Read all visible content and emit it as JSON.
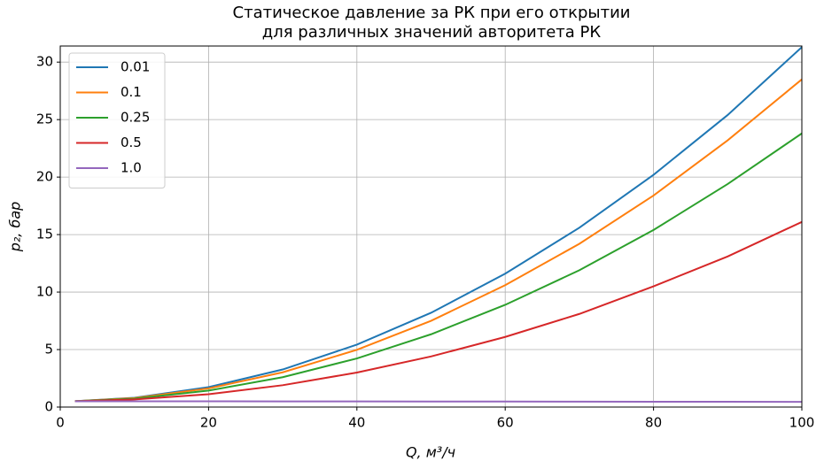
{
  "chart_data": {
    "type": "line",
    "title": [
      "Статическое давление за РК при его открытии",
      "для различных значений авторитета РК"
    ],
    "x_label": "Q,  м³/ч",
    "y_label": "p₂,  бар",
    "x": [
      2,
      10,
      20,
      30,
      40,
      50,
      60,
      70,
      80,
      90,
      100
    ],
    "series": [
      {
        "name": "0.01",
        "color": "#1f77b4",
        "values": [
          0.51,
          0.81,
          1.73,
          3.27,
          5.43,
          8.2,
          11.6,
          15.6,
          20.2,
          25.4,
          31.3
        ]
      },
      {
        "name": "0.1",
        "color": "#ff7f0e",
        "values": [
          0.51,
          0.78,
          1.62,
          3.02,
          4.98,
          7.5,
          10.6,
          14.2,
          18.4,
          23.2,
          28.5
        ]
      },
      {
        "name": "0.25",
        "color": "#2ca02c",
        "values": [
          0.51,
          0.73,
          1.43,
          2.6,
          4.23,
          6.33,
          8.89,
          11.9,
          15.4,
          19.4,
          23.8
        ]
      },
      {
        "name": "0.5",
        "color": "#d62728",
        "values": [
          0.51,
          0.66,
          1.12,
          1.9,
          3.0,
          4.4,
          6.1,
          8.1,
          10.5,
          13.1,
          16.1
        ]
      },
      {
        "name": "1.0",
        "color": "#9467bd",
        "values": [
          0.5,
          0.5,
          0.5,
          0.49,
          0.49,
          0.48,
          0.48,
          0.47,
          0.46,
          0.46,
          0.45
        ]
      }
    ],
    "xlim": [
      0,
      100
    ],
    "ylim": [
      0,
      31.4
    ],
    "xticks": [
      0,
      20,
      40,
      60,
      80,
      100
    ],
    "yticks": [
      0,
      5,
      10,
      15,
      20,
      25,
      30
    ],
    "grid": true,
    "legend": "upper-left"
  }
}
